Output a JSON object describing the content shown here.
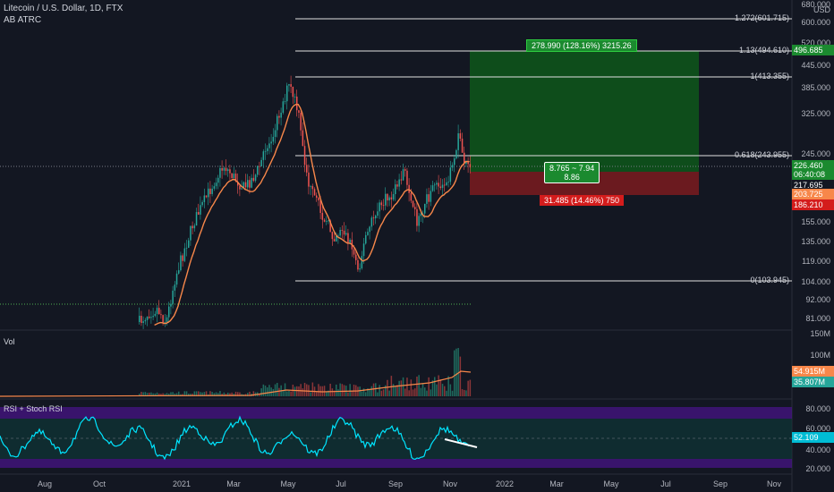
{
  "header": {
    "symbol": "Litecoin / U.S. Dollar, 1D, FTX",
    "indicator": "AB ATRC",
    "currency": "USD"
  },
  "panes": {
    "volume_label": "Vol",
    "rsi_label": "RSI + Stoch RSI"
  },
  "price_axis": {
    "ticks": [
      "680.000",
      "600.000",
      "520.000",
      "445.000",
      "385.000",
      "325.000",
      "245.000",
      "155.000",
      "135.000",
      "119.000",
      "104.000",
      "92.000",
      "81.000"
    ],
    "current_price": "226.460",
    "countdown": "06:40:08",
    "tag_217": "217.695",
    "tag_203": "203.725",
    "tag_186": "186.210",
    "tag_496": "496.685"
  },
  "volume_axis": {
    "ticks": [
      "150M",
      "100M"
    ],
    "tag_vol_ma": "54.915M",
    "tag_vol": "35.807M"
  },
  "rsi_axis": {
    "ticks": [
      "80.000",
      "60.000",
      "40.000",
      "20.000"
    ],
    "tag_rsi": "52.109"
  },
  "time_axis": {
    "ticks": [
      "Aug",
      "Oct",
      "2021",
      "Mar",
      "May",
      "Jul",
      "Sep",
      "Nov",
      "2022",
      "Mar",
      "May",
      "Jul",
      "Sep",
      "Nov"
    ]
  },
  "fib_levels": [
    {
      "label": "1.272(601.715)"
    },
    {
      "label": "1.13(494.610)"
    },
    {
      "label": "1(413.355)"
    },
    {
      "label": "0.618(243.955)"
    },
    {
      "label": "0(103.945)"
    }
  ],
  "position": {
    "target_label": "278.990 (128.16%) 3215.26",
    "entry_label_line1": "8.765 ~ 7.94",
    "entry_label_line2": "8.86",
    "stop_label": "31.485 (14.46%) 750"
  },
  "colors": {
    "background": "#131722",
    "up": "#26a69a",
    "down": "#ef5350",
    "ma": "#f7874a",
    "target_zone": "#0e4d1b",
    "stop_zone": "#6b1a1f",
    "rsi_line": "#00e5ff",
    "rsi_band": "#4a148c"
  }
}
